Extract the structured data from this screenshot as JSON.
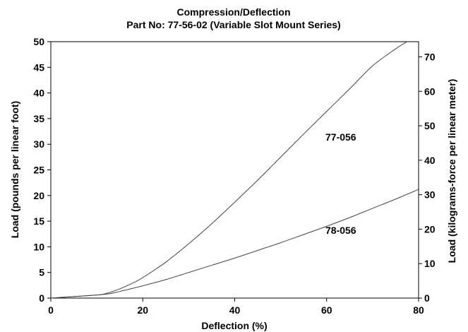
{
  "chart_data": {
    "type": "line",
    "title": "Compression/Deflection",
    "subtitle": "Part No: 77-56-02 (Variable Slot Mount Series)",
    "xlabel": "Deflection (%)",
    "ylabel": "Load (pounds per linear foot)",
    "ylabel_right": "Load (kilograms-force per linear meter)",
    "xlim": [
      0,
      80
    ],
    "ylim": [
      0,
      50
    ],
    "ylim_right": [
      0,
      74.4
    ],
    "x_ticks": [
      "0",
      "20",
      "40",
      "60",
      "80"
    ],
    "y_ticks": [
      "0",
      "5",
      "10",
      "15",
      "20",
      "25",
      "30",
      "35",
      "40",
      "45",
      "50"
    ],
    "y_right_ticks": [
      "0",
      "10",
      "20",
      "30",
      "40",
      "50",
      "60",
      "70"
    ],
    "grid": false,
    "series": [
      {
        "name": "77-056",
        "x": [
          0,
          5,
          10,
          12,
          15,
          18,
          20,
          25,
          30,
          35,
          40,
          45,
          50,
          55,
          60,
          65,
          70,
          75,
          77.5
        ],
        "y": [
          0,
          0.3,
          0.6,
          0.9,
          1.8,
          3.0,
          4.0,
          7.0,
          10.6,
          14.5,
          18.7,
          23.0,
          27.5,
          32.0,
          36.4,
          40.8,
          45.3,
          48.6,
          50
        ]
      },
      {
        "name": "78-056",
        "x": [
          0,
          5,
          10,
          13,
          15,
          20,
          25,
          30,
          35,
          40,
          45,
          50,
          55,
          60,
          65,
          70,
          75,
          80
        ],
        "y": [
          0,
          0.3,
          0.6,
          0.9,
          1.3,
          2.4,
          3.6,
          5.0,
          6.4,
          7.8,
          9.3,
          10.8,
          12.4,
          14.0,
          15.7,
          17.5,
          19.3,
          21.2
        ]
      }
    ]
  }
}
